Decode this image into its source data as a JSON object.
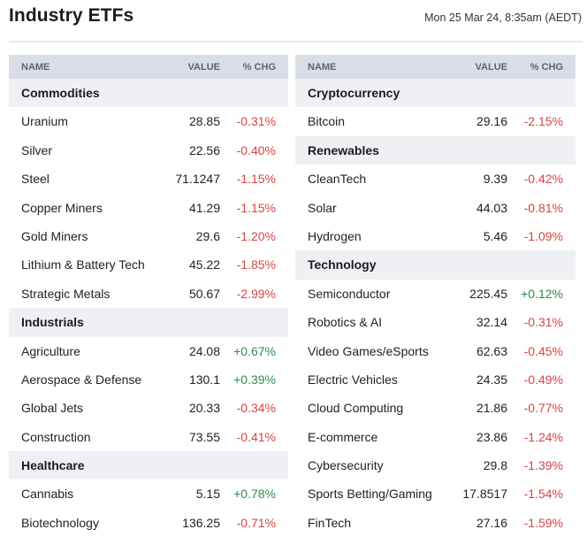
{
  "page": {
    "title": "Industry ETFs",
    "timestamp": "Mon 25 Mar 24, 8:35am (AEDT)"
  },
  "columns": {
    "name": "NAME",
    "value": "VALUE",
    "chg": "% CHG"
  },
  "colors": {
    "negative": "#d64545",
    "positive": "#2f8a4f",
    "header_bg": "#d9dee5",
    "category_bg": "#eef0f3"
  },
  "left_table": [
    {
      "type": "category",
      "label": "Commodities"
    },
    {
      "type": "item",
      "name": "Uranium",
      "value": "28.85",
      "chg": "-0.31%",
      "dir": "neg"
    },
    {
      "type": "item",
      "name": "Silver",
      "value": "22.56",
      "chg": "-0.40%",
      "dir": "neg"
    },
    {
      "type": "item",
      "name": "Steel",
      "value": "71.1247",
      "chg": "-1.15%",
      "dir": "neg"
    },
    {
      "type": "item",
      "name": "Copper Miners",
      "value": "41.29",
      "chg": "-1.15%",
      "dir": "neg"
    },
    {
      "type": "item",
      "name": "Gold Miners",
      "value": "29.6",
      "chg": "-1.20%",
      "dir": "neg"
    },
    {
      "type": "item",
      "name": "Lithium & Battery Tech",
      "value": "45.22",
      "chg": "-1.85%",
      "dir": "neg"
    },
    {
      "type": "item",
      "name": "Strategic Metals",
      "value": "50.67",
      "chg": "-2.99%",
      "dir": "neg"
    },
    {
      "type": "category",
      "label": "Industrials"
    },
    {
      "type": "item",
      "name": "Agriculture",
      "value": "24.08",
      "chg": "+0.67%",
      "dir": "pos"
    },
    {
      "type": "item",
      "name": "Aerospace & Defense",
      "value": "130.1",
      "chg": "+0.39%",
      "dir": "pos"
    },
    {
      "type": "item",
      "name": "Global Jets",
      "value": "20.33",
      "chg": "-0.34%",
      "dir": "neg"
    },
    {
      "type": "item",
      "name": "Construction",
      "value": "73.55",
      "chg": "-0.41%",
      "dir": "neg"
    },
    {
      "type": "category",
      "label": "Healthcare"
    },
    {
      "type": "item",
      "name": "Cannabis",
      "value": "5.15",
      "chg": "+0.78%",
      "dir": "pos"
    },
    {
      "type": "item",
      "name": "Biotechnology",
      "value": "136.25",
      "chg": "-0.71%",
      "dir": "neg"
    }
  ],
  "right_table": [
    {
      "type": "category",
      "label": "Cryptocurrency"
    },
    {
      "type": "item",
      "name": "Bitcoin",
      "value": "29.16",
      "chg": "-2.15%",
      "dir": "neg"
    },
    {
      "type": "category",
      "label": "Renewables"
    },
    {
      "type": "item",
      "name": "CleanTech",
      "value": "9.39",
      "chg": "-0.42%",
      "dir": "neg"
    },
    {
      "type": "item",
      "name": "Solar",
      "value": "44.03",
      "chg": "-0.81%",
      "dir": "neg"
    },
    {
      "type": "item",
      "name": "Hydrogen",
      "value": "5.46",
      "chg": "-1.09%",
      "dir": "neg"
    },
    {
      "type": "category",
      "label": "Technology"
    },
    {
      "type": "item",
      "name": "Semiconductor",
      "value": "225.45",
      "chg": "+0.12%",
      "dir": "pos"
    },
    {
      "type": "item",
      "name": "Robotics & AI",
      "value": "32.14",
      "chg": "-0.31%",
      "dir": "neg"
    },
    {
      "type": "item",
      "name": "Video Games/eSports",
      "value": "62.63",
      "chg": "-0.45%",
      "dir": "neg"
    },
    {
      "type": "item",
      "name": "Electric Vehicles",
      "value": "24.35",
      "chg": "-0.49%",
      "dir": "neg"
    },
    {
      "type": "item",
      "name": "Cloud Computing",
      "value": "21.86",
      "chg": "-0.77%",
      "dir": "neg"
    },
    {
      "type": "item",
      "name": "E-commerce",
      "value": "23.86",
      "chg": "-1.24%",
      "dir": "neg"
    },
    {
      "type": "item",
      "name": "Cybersecurity",
      "value": "29.8",
      "chg": "-1.39%",
      "dir": "neg"
    },
    {
      "type": "item",
      "name": "Sports Betting/Gaming",
      "value": "17.8517",
      "chg": "-1.54%",
      "dir": "neg"
    },
    {
      "type": "item",
      "name": "FinTech",
      "value": "27.16",
      "chg": "-1.59%",
      "dir": "neg"
    }
  ]
}
